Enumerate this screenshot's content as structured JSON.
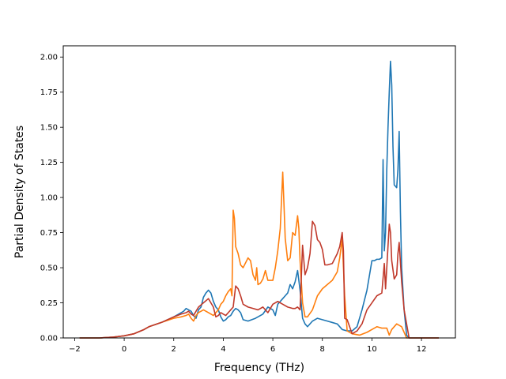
{
  "chart_data": {
    "type": "line",
    "title": "",
    "xlabel": "Frequency (THz)",
    "ylabel": "Partial Density of States",
    "xlim": [
      -2.46,
      13.37
    ],
    "ylim": [
      0,
      2.08
    ],
    "xticks": [
      -2,
      0,
      2,
      4,
      6,
      8,
      10,
      12
    ],
    "xtick_labels": [
      "−2",
      "0",
      "2",
      "4",
      "6",
      "8",
      "10",
      "12"
    ],
    "yticks": [
      0,
      0.25,
      0.5,
      0.75,
      1.0,
      1.25,
      1.5,
      1.75,
      2.0
    ],
    "ytick_labels": [
      "0.00",
      "0.25",
      "0.50",
      "0.75",
      "1.00",
      "1.25",
      "1.50",
      "1.75",
      "2.00"
    ],
    "grid": false,
    "legend": "none",
    "series": [
      {
        "color": "#1f77b4",
        "x": [
          -1.8,
          -1.0,
          -0.5,
          0.0,
          0.4,
          0.8,
          1.0,
          1.5,
          2.0,
          2.2,
          2.4,
          2.5,
          2.6,
          2.7,
          2.8,
          2.9,
          3.0,
          3.1,
          3.2,
          3.3,
          3.4,
          3.5,
          3.6,
          3.7,
          3.8,
          3.9,
          4.0,
          4.1,
          4.2,
          4.3,
          4.4,
          4.5,
          4.6,
          4.7,
          4.8,
          5.0,
          5.3,
          5.6,
          5.8,
          6.0,
          6.1,
          6.2,
          6.4,
          6.5,
          6.6,
          6.7,
          6.8,
          6.9,
          7.0,
          7.1,
          7.2,
          7.3,
          7.4,
          7.6,
          7.8,
          8.0,
          8.2,
          8.4,
          8.6,
          8.8,
          9.0,
          9.2,
          9.4,
          9.6,
          9.8,
          10.0,
          10.1,
          10.2,
          10.3,
          10.4,
          10.45,
          10.5,
          10.55,
          10.6,
          10.65,
          10.7,
          10.75,
          10.8,
          10.85,
          10.9,
          11.0,
          11.05,
          11.1,
          11.15,
          11.2,
          11.3,
          11.4,
          11.5,
          11.6,
          12.0,
          12.7
        ],
        "y": [
          0.0,
          0.0,
          0.005,
          0.015,
          0.03,
          0.06,
          0.08,
          0.11,
          0.15,
          0.17,
          0.19,
          0.21,
          0.2,
          0.19,
          0.16,
          0.14,
          0.2,
          0.22,
          0.29,
          0.32,
          0.34,
          0.32,
          0.26,
          0.22,
          0.2,
          0.15,
          0.12,
          0.13,
          0.15,
          0.16,
          0.19,
          0.21,
          0.2,
          0.18,
          0.13,
          0.12,
          0.14,
          0.17,
          0.22,
          0.2,
          0.16,
          0.24,
          0.28,
          0.3,
          0.32,
          0.38,
          0.35,
          0.4,
          0.48,
          0.34,
          0.14,
          0.1,
          0.08,
          0.12,
          0.14,
          0.13,
          0.12,
          0.11,
          0.1,
          0.06,
          0.05,
          0.05,
          0.08,
          0.2,
          0.34,
          0.55,
          0.55,
          0.56,
          0.56,
          0.57,
          1.27,
          0.62,
          0.75,
          1.2,
          1.5,
          1.75,
          1.97,
          1.8,
          1.36,
          1.09,
          1.07,
          1.2,
          1.47,
          0.9,
          0.5,
          0.2,
          0.02,
          0.0,
          0.0,
          0.0,
          0.0
        ]
      },
      {
        "color": "#ff7f0e",
        "x": [
          -1.8,
          -1.0,
          -0.5,
          0.0,
          0.4,
          0.8,
          1.0,
          1.5,
          2.0,
          2.3,
          2.5,
          2.6,
          2.7,
          2.8,
          2.9,
          3.0,
          3.2,
          3.4,
          3.6,
          3.8,
          3.9,
          4.0,
          4.1,
          4.2,
          4.3,
          4.35,
          4.4,
          4.45,
          4.5,
          4.6,
          4.7,
          4.8,
          5.0,
          5.1,
          5.2,
          5.3,
          5.35,
          5.4,
          5.5,
          5.6,
          5.7,
          5.8,
          6.0,
          6.1,
          6.2,
          6.3,
          6.4,
          6.45,
          6.5,
          6.6,
          6.7,
          6.8,
          6.9,
          7.0,
          7.05,
          7.1,
          7.2,
          7.3,
          7.4,
          7.6,
          7.8,
          8.0,
          8.2,
          8.4,
          8.6,
          8.7,
          8.8,
          8.9,
          9.0,
          9.2,
          9.5,
          9.8,
          10.0,
          10.2,
          10.4,
          10.6,
          10.7,
          10.8,
          11.0,
          11.2,
          11.4,
          12.0,
          12.7
        ],
        "y": [
          0.0,
          0.0,
          0.005,
          0.015,
          0.03,
          0.06,
          0.08,
          0.11,
          0.14,
          0.15,
          0.16,
          0.17,
          0.14,
          0.12,
          0.16,
          0.18,
          0.2,
          0.18,
          0.16,
          0.2,
          0.24,
          0.26,
          0.3,
          0.33,
          0.35,
          0.3,
          0.91,
          0.85,
          0.65,
          0.6,
          0.52,
          0.5,
          0.57,
          0.55,
          0.45,
          0.41,
          0.5,
          0.38,
          0.39,
          0.42,
          0.48,
          0.41,
          0.41,
          0.5,
          0.62,
          0.78,
          1.18,
          0.95,
          0.71,
          0.55,
          0.57,
          0.75,
          0.73,
          0.87,
          0.78,
          0.55,
          0.25,
          0.15,
          0.15,
          0.2,
          0.3,
          0.35,
          0.38,
          0.41,
          0.47,
          0.57,
          0.71,
          0.3,
          0.05,
          0.03,
          0.02,
          0.04,
          0.06,
          0.08,
          0.07,
          0.07,
          0.02,
          0.06,
          0.1,
          0.08,
          0.0,
          0.0,
          0.0
        ]
      },
      {
        "color": "#c0392b",
        "x": [
          -1.8,
          -1.0,
          -0.5,
          0.0,
          0.4,
          0.8,
          1.0,
          1.5,
          2.0,
          2.3,
          2.5,
          2.6,
          2.7,
          2.8,
          2.9,
          3.0,
          3.2,
          3.4,
          3.6,
          3.7,
          3.8,
          3.9,
          4.0,
          4.1,
          4.2,
          4.3,
          4.4,
          4.5,
          4.6,
          4.7,
          4.8,
          5.0,
          5.2,
          5.4,
          5.6,
          5.8,
          6.0,
          6.2,
          6.4,
          6.6,
          6.8,
          6.9,
          7.0,
          7.1,
          7.2,
          7.3,
          7.4,
          7.5,
          7.6,
          7.7,
          7.8,
          7.9,
          8.0,
          8.1,
          8.2,
          8.4,
          8.6,
          8.7,
          8.8,
          8.85,
          8.9,
          9.0,
          9.2,
          9.4,
          9.6,
          9.8,
          10.0,
          10.2,
          10.4,
          10.5,
          10.55,
          10.6,
          10.7,
          10.75,
          10.8,
          10.9,
          11.0,
          11.05,
          11.1,
          11.2,
          11.3,
          11.5,
          12.0,
          12.7
        ],
        "y": [
          0.0,
          0.0,
          0.005,
          0.015,
          0.03,
          0.06,
          0.08,
          0.11,
          0.15,
          0.17,
          0.18,
          0.19,
          0.17,
          0.16,
          0.19,
          0.22,
          0.25,
          0.28,
          0.22,
          0.15,
          0.16,
          0.18,
          0.17,
          0.16,
          0.18,
          0.2,
          0.22,
          0.37,
          0.35,
          0.3,
          0.24,
          0.22,
          0.21,
          0.2,
          0.22,
          0.18,
          0.24,
          0.26,
          0.24,
          0.22,
          0.21,
          0.21,
          0.22,
          0.2,
          0.66,
          0.45,
          0.5,
          0.6,
          0.83,
          0.8,
          0.7,
          0.68,
          0.63,
          0.52,
          0.52,
          0.53,
          0.6,
          0.65,
          0.75,
          0.62,
          0.14,
          0.13,
          0.03,
          0.05,
          0.1,
          0.2,
          0.25,
          0.3,
          0.32,
          0.53,
          0.35,
          0.5,
          0.81,
          0.75,
          0.55,
          0.42,
          0.45,
          0.6,
          0.68,
          0.4,
          0.2,
          0.0,
          0.0,
          0.0
        ]
      }
    ]
  }
}
